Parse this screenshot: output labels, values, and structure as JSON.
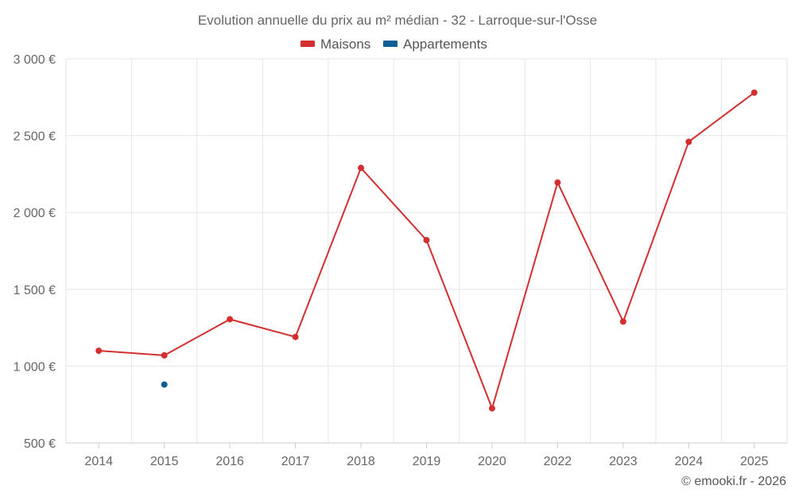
{
  "chart_data": {
    "type": "line",
    "title": "Evolution annuelle du prix au m² médian - 32 - Larroque-sur-l'Osse",
    "categories": [
      "2014",
      "2015",
      "2016",
      "2017",
      "2018",
      "2019",
      "2020",
      "2022",
      "2023",
      "2024",
      "2025"
    ],
    "series": [
      {
        "name": "Maisons",
        "color": "#d32f2f",
        "values": [
          1100,
          1070,
          1305,
          1190,
          2290,
          1820,
          725,
          2195,
          1290,
          2460,
          2780
        ]
      },
      {
        "name": "Appartements",
        "color": "#0d5e95",
        "values": [
          null,
          880,
          null,
          null,
          null,
          null,
          null,
          null,
          null,
          null,
          null
        ]
      }
    ],
    "ylim": [
      500,
      3000
    ],
    "yticks": [
      500,
      1000,
      1500,
      2000,
      2500,
      3000
    ],
    "ytick_labels": [
      "500 €",
      "1 000 €",
      "1 500 €",
      "2 000 €",
      "2 500 €",
      "3 000 €"
    ],
    "grid": true,
    "legend_position": "top-center",
    "xlabel": "",
    "ylabel": ""
  },
  "credit": "© emooki.fr - 2026"
}
